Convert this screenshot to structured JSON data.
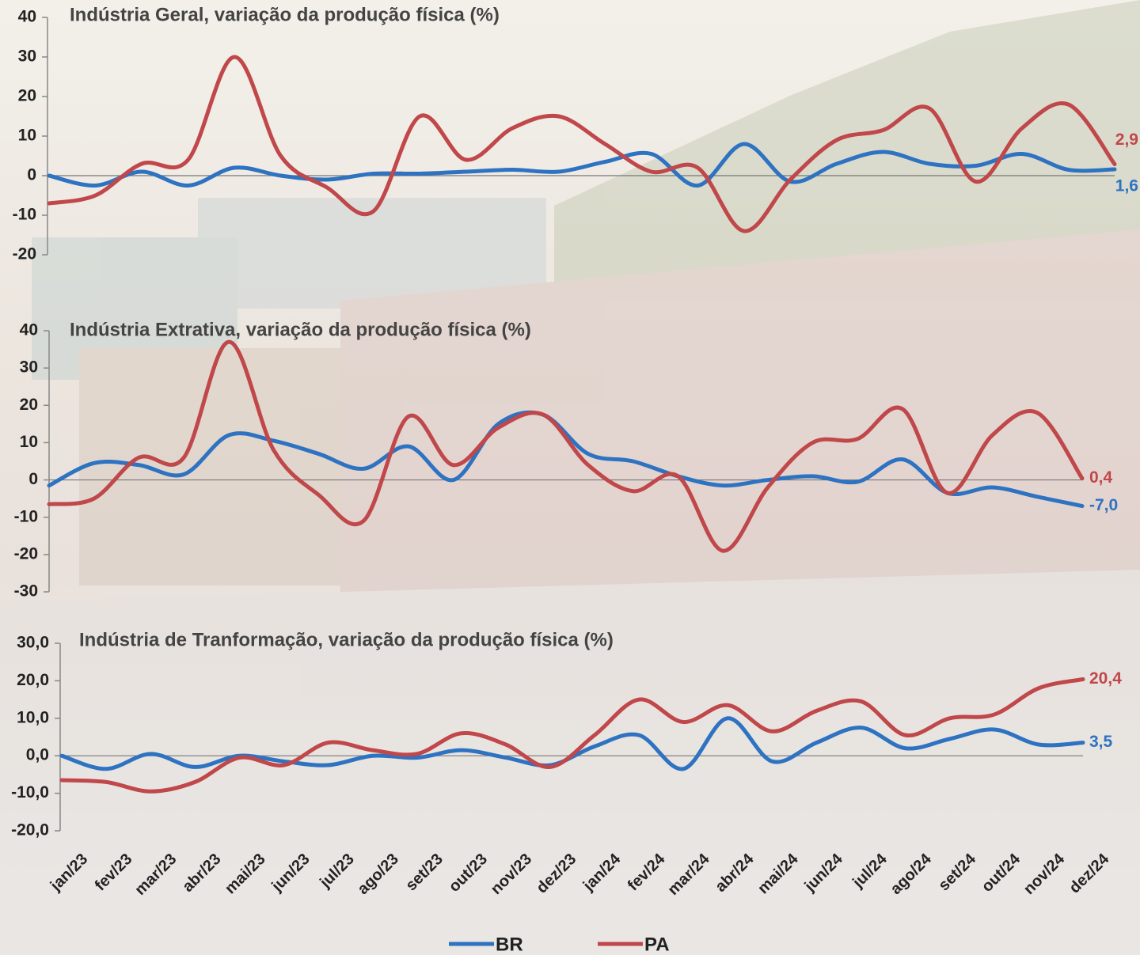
{
  "chart_data": [
    {
      "type": "line",
      "title": "Indústria Geral, variação da produção física (%)",
      "ylim": [
        -20,
        40
      ],
      "yticks": [
        -20,
        -10,
        0,
        10,
        20,
        30,
        40
      ],
      "series": [
        {
          "name": "BR",
          "color": "#2e72c2",
          "values": [
            0,
            -2.5,
            1,
            -2.5,
            2,
            0,
            -1,
            0.5,
            0.5,
            1,
            1.5,
            1,
            3.5,
            5.5,
            -2.5,
            8,
            -1.5,
            3,
            6,
            3,
            2.5,
            5.5,
            1.5,
            1.6
          ],
          "value_labels": [
            null,
            null,
            null,
            null,
            null,
            null,
            null,
            null,
            null,
            null,
            null,
            null,
            null,
            null,
            null,
            null,
            null,
            null,
            null,
            null,
            null,
            null,
            null,
            "1,6"
          ]
        },
        {
          "name": "PA",
          "color": "#c0474a",
          "values": [
            -7,
            -5,
            3,
            4,
            30,
            5,
            -3,
            -9,
            15,
            4,
            12,
            15,
            8,
            1,
            2,
            -14,
            -1,
            9,
            11.5,
            17,
            -1.5,
            12,
            18,
            2.9
          ],
          "value_labels": [
            null,
            null,
            null,
            null,
            null,
            null,
            null,
            null,
            null,
            null,
            null,
            null,
            null,
            null,
            null,
            null,
            null,
            null,
            null,
            null,
            null,
            null,
            null,
            "2,9"
          ]
        }
      ]
    },
    {
      "type": "line",
      "title": "Indústria Extrativa, variação da produção física (%)",
      "ylim": [
        -30,
        40
      ],
      "yticks": [
        -30,
        -20,
        -10,
        0,
        10,
        20,
        30,
        40
      ],
      "series": [
        {
          "color": "#2e72c2",
          "values": [
            -1.5,
            4.5,
            4,
            1.5,
            12,
            10.5,
            7,
            3,
            9,
            0,
            15,
            17.5,
            7,
            5,
            1,
            -1.5,
            0,
            1,
            -0.5,
            5.5,
            -3.5,
            -2,
            -4.5,
            -7
          ],
          "value_labels": [
            null,
            null,
            null,
            null,
            null,
            null,
            null,
            null,
            null,
            null,
            null,
            null,
            null,
            null,
            null,
            null,
            null,
            null,
            null,
            null,
            null,
            null,
            null,
            "-7,0"
          ]
        },
        {
          "color": "#c0474a",
          "values": [
            -6.5,
            -5,
            6,
            6,
            37,
            8,
            -4,
            -11,
            17,
            4,
            14,
            17.5,
            4,
            -3,
            1,
            -19,
            -2,
            10,
            11,
            19,
            -3.5,
            12,
            18,
            0.4
          ],
          "value_labels": [
            null,
            null,
            null,
            null,
            null,
            null,
            null,
            null,
            null,
            null,
            null,
            null,
            null,
            null,
            null,
            null,
            null,
            null,
            null,
            null,
            null,
            null,
            null,
            "0,4"
          ]
        }
      ]
    },
    {
      "type": "line",
      "title": "Indústria de Tranformação, variação da produção física (%)",
      "categories": [
        "jan/23",
        "fev/23",
        "mar/23",
        "abr/23",
        "mai/23",
        "jun/23",
        "jul/23",
        "ago/23",
        "set/23",
        "out/23",
        "nov/23",
        "dez/23",
        "jan/24",
        "fev/24",
        "mar/24",
        "abr/24",
        "mai/24",
        "jun/24",
        "jul/24",
        "ago/24",
        "set/24",
        "out/24",
        "nov/24",
        "dez/24"
      ],
      "ylim": [
        -20,
        30
      ],
      "yticks": [
        {
          "value": -20,
          "label": "-20,0"
        },
        {
          "value": -10,
          "label": "-10,0"
        },
        {
          "value": 0,
          "label": "0,0"
        },
        {
          "value": 10,
          "label": "10,0"
        },
        {
          "value": 20,
          "label": "20,0"
        },
        {
          "value": 30,
          "label": "30,0"
        }
      ],
      "series": [
        {
          "color": "#2e72c2",
          "values": [
            0,
            -3.5,
            0.5,
            -3,
            0,
            -1.5,
            -2.5,
            0,
            -0.5,
            1.5,
            -0.5,
            -2.5,
            2.5,
            5.5,
            -3.5,
            10,
            -1.5,
            3.5,
            7.5,
            2,
            4.5,
            7,
            3,
            3.5
          ],
          "value_labels": [
            null,
            null,
            null,
            null,
            null,
            null,
            null,
            null,
            null,
            null,
            null,
            null,
            null,
            null,
            null,
            null,
            null,
            null,
            null,
            null,
            null,
            null,
            null,
            "3,5"
          ]
        },
        {
          "color": "#c0474a",
          "values": [
            -6.5,
            -7,
            -9.5,
            -7,
            -0.5,
            -2.5,
            3.5,
            1.5,
            0.5,
            6,
            3,
            -3,
            5.5,
            15,
            9,
            13.5,
            6.5,
            12,
            14.5,
            5.5,
            10,
            11,
            18,
            20.4
          ],
          "value_labels": [
            null,
            null,
            null,
            null,
            null,
            null,
            null,
            null,
            null,
            null,
            null,
            null,
            null,
            null,
            null,
            null,
            null,
            null,
            null,
            null,
            null,
            null,
            null,
            "20,4"
          ]
        }
      ]
    }
  ]
}
